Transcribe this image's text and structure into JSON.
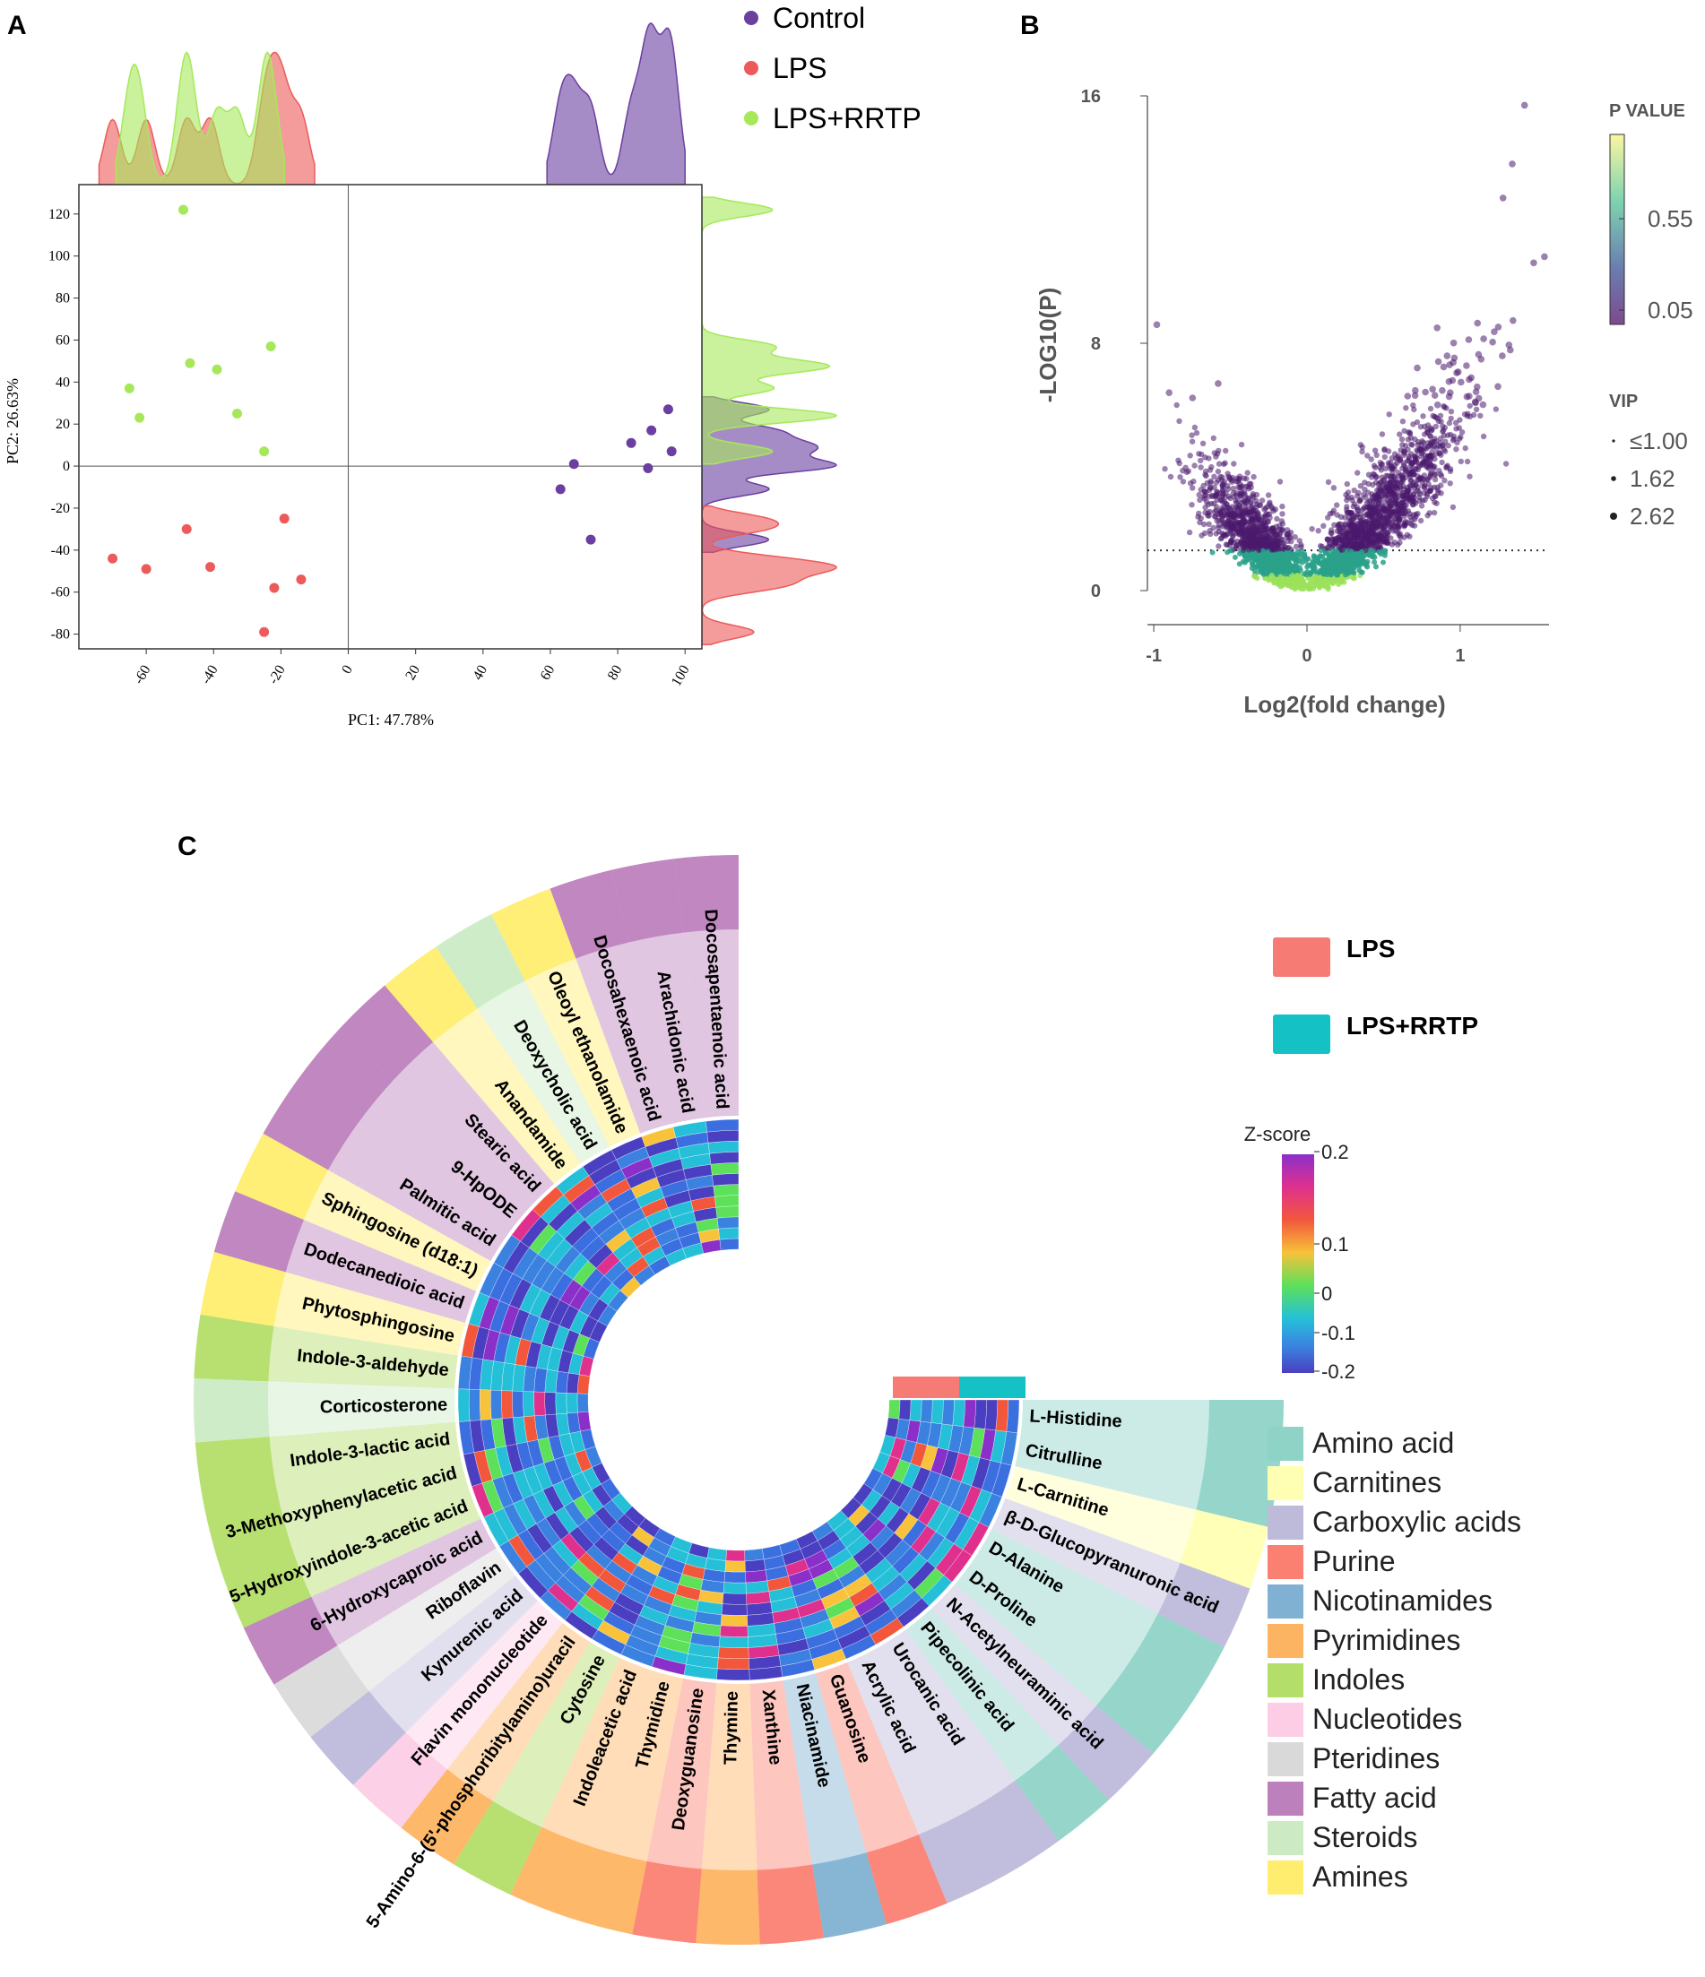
{
  "panels": {
    "a": "A",
    "b": "B",
    "c": "C"
  },
  "colors": {
    "control": "#6b3fa0",
    "lps": "#ec5a5a",
    "lps_rrtp": "#a6e85a",
    "volcano_dot": "#4a1a6e",
    "lps_bar": "#f57b74",
    "rrtp_bar": "#14c2c6"
  },
  "chart_data": [
    {
      "type": "scatter",
      "panel": "A",
      "xlabel": "PC1: 47.78%",
      "ylabel": "PC2: 26.63%",
      "xlim": [
        -80,
        105
      ],
      "ylim": [
        -87,
        134
      ],
      "xticks": [
        -60,
        -40,
        -20,
        0,
        20,
        40,
        60,
        80,
        100
      ],
      "yticks": [
        -80,
        -60,
        -40,
        -20,
        0,
        20,
        40,
        60,
        80,
        100,
        120
      ],
      "grid": false,
      "legend_position": "top-right",
      "series": [
        {
          "name": "Control",
          "color": "#6b3fa0",
          "points": [
            [
              63,
              -11
            ],
            [
              67,
              1
            ],
            [
              72,
              -35
            ],
            [
              84,
              11
            ],
            [
              89,
              -1
            ],
            [
              90,
              17
            ],
            [
              95,
              27
            ],
            [
              96,
              7
            ]
          ]
        },
        {
          "name": "LPS",
          "color": "#ec5a5a",
          "points": [
            [
              -70,
              -44
            ],
            [
              -60,
              -49
            ],
            [
              -48,
              -30
            ],
            [
              -41,
              -48
            ],
            [
              -25,
              -79
            ],
            [
              -22,
              -58
            ],
            [
              -19,
              -25
            ],
            [
              -14,
              -54
            ]
          ]
        },
        {
          "name": "LPS+RRTP",
          "color": "#a6e85a",
          "points": [
            [
              -49,
              122
            ],
            [
              -65,
              37
            ],
            [
              -62,
              23
            ],
            [
              -47,
              49
            ],
            [
              -39,
              46
            ],
            [
              -33,
              25
            ],
            [
              -25,
              7
            ],
            [
              -23,
              57
            ]
          ]
        }
      ]
    },
    {
      "type": "scatter",
      "panel": "B",
      "xlabel": "Log2(fold change)",
      "ylabel": "-LOG10(P)",
      "xlim": [
        -1.1,
        1.58
      ],
      "ylim": [
        0,
        16
      ],
      "xticks": [
        -1,
        0,
        1
      ],
      "yticks": [
        0,
        8,
        16
      ],
      "threshold_y": 1.3,
      "colorbar": {
        "title": "P VALUE",
        "ticks": [
          "0.55",
          "0.05"
        ]
      },
      "size_legend": {
        "title": "VIP",
        "entries": [
          "≤1.00",
          "1.62",
          "2.62"
        ]
      },
      "note": "thousands of metabolites forming a V-shaped distribution; representative sample drawn"
    },
    {
      "type": "heatmap",
      "panel": "C",
      "layout": "circular",
      "groups": [
        "LPS",
        "LPS+RRTP"
      ],
      "colorbar": {
        "title": "Z-score",
        "ticks": [
          "0.2",
          "0.1",
          "0",
          "-0.1",
          "-0.2"
        ]
      },
      "metabolites": [
        {
          "name": "Docosapentaenoic acid",
          "class": "Fatty acid"
        },
        {
          "name": "Arachidonic acid",
          "class": "Fatty acid"
        },
        {
          "name": "Docosahexaenoic acid",
          "class": "Fatty acid"
        },
        {
          "name": "Oleoyl ethanolamide",
          "class": "Amines"
        },
        {
          "name": "Deoxycholic acid",
          "class": "Steroids"
        },
        {
          "name": "Anandamide",
          "class": "Amines"
        },
        {
          "name": "Stearic acid",
          "class": "Fatty acid"
        },
        {
          "name": "9-HpODE",
          "class": "Fatty acid"
        },
        {
          "name": "Palmitic acid",
          "class": "Fatty acid"
        },
        {
          "name": "Sphingosine (d18:1)",
          "class": "Amines"
        },
        {
          "name": "Dodecanedioic acid",
          "class": "Fatty acid"
        },
        {
          "name": "Phytosphingosine",
          "class": "Amines"
        },
        {
          "name": "Indole-3-aldehyde",
          "class": "Indoles"
        },
        {
          "name": "Corticosterone",
          "class": "Steroids"
        },
        {
          "name": "Indole-3-lactic acid",
          "class": "Indoles"
        },
        {
          "name": "3-Methoxyphenylacetic acid",
          "class": "Indoles"
        },
        {
          "name": "5-Hydroxyindole-3-acetic acid",
          "class": "Indoles"
        },
        {
          "name": "6-Hydroxycaproic acid",
          "class": "Fatty acid"
        },
        {
          "name": "Riboflavin",
          "class": "Pteridines"
        },
        {
          "name": "Kynurenic acid",
          "class": "Carboxylic acids"
        },
        {
          "name": "Flavin mononucleotide",
          "class": "Nucleotides"
        },
        {
          "name": "5-Amino-6-(5'-phosphoribitylamino)uracil",
          "class": "Pyrimidines"
        },
        {
          "name": "Cytosine",
          "class": "Indoles"
        },
        {
          "name": "Indoleacetic acid",
          "class": "Pyrimidines"
        },
        {
          "name": "Thymidine",
          "class": "Pyrimidines"
        },
        {
          "name": "Deoxyguanosine",
          "class": "Purine"
        },
        {
          "name": "Thymine",
          "class": "Pyrimidines"
        },
        {
          "name": "Xanthine",
          "class": "Purine"
        },
        {
          "name": "Niacinamide",
          "class": "Nicotinamides"
        },
        {
          "name": "Guanosine",
          "class": "Purine"
        },
        {
          "name": "Acrylic acid",
          "class": "Carboxylic acids"
        },
        {
          "name": "Urocanic acid",
          "class": "Carboxylic acids"
        },
        {
          "name": "Pipecolinic acid",
          "class": "Amino acid"
        },
        {
          "name": "N-Acetylneuraminic acid",
          "class": "Carboxylic acids"
        },
        {
          "name": "D-Proline",
          "class": "Amino acid"
        },
        {
          "name": "D-Alanine",
          "class": "Amino acid"
        },
        {
          "name": "β-D-Glucopyranuronic acid",
          "class": "Carboxylic acids"
        },
        {
          "name": "L-Carnitine",
          "class": "Carnitines"
        },
        {
          "name": "Citrulline",
          "class": "Amino acid"
        },
        {
          "name": "L-Histidine",
          "class": "Amino acid"
        }
      ],
      "classes": [
        {
          "name": "Amino acid",
          "color": "#8fd3c7"
        },
        {
          "name": "Carnitines",
          "color": "#ffffb3"
        },
        {
          "name": "Carboxylic acids",
          "color": "#bebada"
        },
        {
          "name": "Purine",
          "color": "#fb8072"
        },
        {
          "name": "Nicotinamides",
          "color": "#80b1d3"
        },
        {
          "name": "Pyrimidines",
          "color": "#fdb462"
        },
        {
          "name": "Indoles",
          "color": "#b3de69"
        },
        {
          "name": "Nucleotides",
          "color": "#fccde5"
        },
        {
          "name": "Pteridines",
          "color": "#d9d9d9"
        },
        {
          "name": "Fatty acid",
          "color": "#bc80bd"
        },
        {
          "name": "Steroids",
          "color": "#ccebc5"
        },
        {
          "name": "Amines",
          "color": "#ffed6f"
        }
      ]
    }
  ]
}
